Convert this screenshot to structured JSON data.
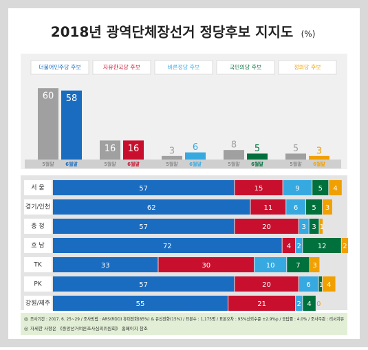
{
  "chart_data": [
    {
      "type": "grouped-bar",
      "title": "2018년 광역단체장선거 정당후보 지지도",
      "unit": "(%)",
      "categories": [
        "더불어민주당 후보",
        "자유한국당 후보",
        "바른정당 후보",
        "국민의당 후보",
        "정의당 후보"
      ],
      "category_colors": [
        "#1a6cc0",
        "#c8102e",
        "#36a9e1",
        "#00703c",
        "#f0a000"
      ],
      "series": [
        {
          "name": "5월말",
          "color": "#a0a0a0",
          "values": [
            60,
            16,
            3,
            8,
            5
          ]
        },
        {
          "name": "6월말",
          "colors": [
            "#1a6cc0",
            "#c8102e",
            "#36a9e1",
            "#00703c",
            "#f0a000"
          ],
          "values": [
            58,
            16,
            6,
            5,
            3
          ]
        }
      ]
    },
    {
      "type": "stacked-bar-horizontal",
      "categories": [
        "서 울",
        "경기/인천",
        "충 청",
        "호 남",
        "TK",
        "PK",
        "강원/제주"
      ],
      "series": [
        {
          "color": "#1a6cc0",
          "values": [
            57,
            62,
            57,
            72,
            33,
            57,
            55
          ]
        },
        {
          "color": "#c8102e",
          "values": [
            15,
            11,
            20,
            4,
            30,
            20,
            21
          ]
        },
        {
          "color": "#36a9e1",
          "values": [
            9,
            6,
            3,
            2,
            10,
            6,
            2
          ]
        },
        {
          "color": "#00703c",
          "values": [
            5,
            5,
            3,
            12,
            7,
            1,
            4
          ]
        },
        {
          "color": "#f0a000",
          "values": [
            4,
            3,
            1,
            2,
            3,
            4,
            0
          ]
        }
      ]
    }
  ],
  "notes": [
    "조사기간 : 2017. 6. 25~29 / 조사방법 : ARS(RDD) 휴대전화(85%) & 유선전화(15%) / 표본수 : 1,175명 / 표본오차 : 95%신뢰수준 ±2.9%p / 응답률 : 4.0% / 조사주관 : 리서치뷰",
    "자세한 사항은 《중앙선거여론조사심의위원회》 홈페이지 참조"
  ]
}
